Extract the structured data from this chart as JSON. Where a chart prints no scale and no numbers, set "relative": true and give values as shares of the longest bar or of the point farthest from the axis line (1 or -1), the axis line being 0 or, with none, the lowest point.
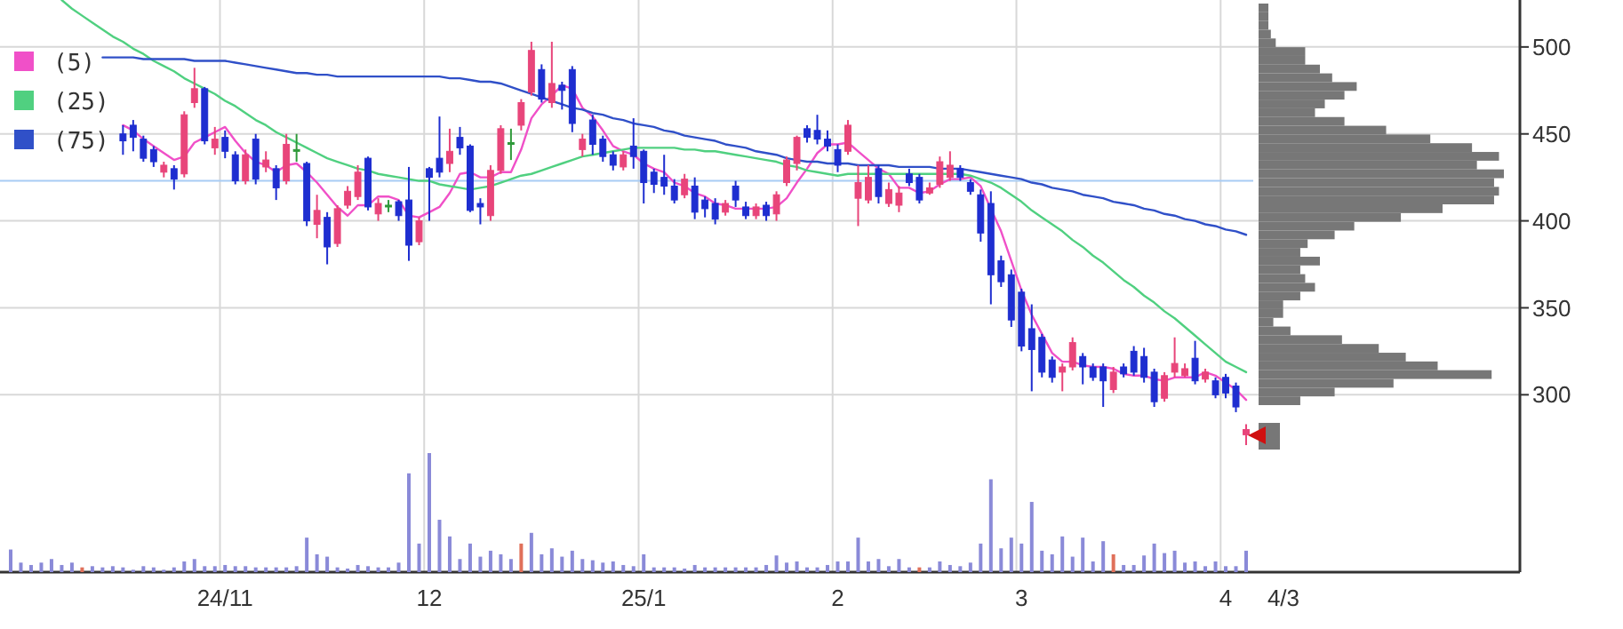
{
  "chart_data": [
    {
      "type": "candlestick",
      "annotations": [
        "4/3"
      ],
      "grid": true,
      "legend": "top left",
      "ylim": [
        198,
        527
      ],
      "yticks": [
        300,
        350,
        400,
        450,
        500
      ],
      "categories": [
        null,
        null,
        null,
        null,
        null,
        null,
        null,
        null,
        null,
        null,
        null,
        null,
        null,
        null,
        null,
        null,
        null,
        null,
        null,
        null,
        null,
        "24/11",
        null,
        null,
        null,
        null,
        null,
        null,
        null,
        null,
        null,
        null,
        null,
        null,
        null,
        null,
        null,
        null,
        null,
        null,
        null,
        "12",
        null,
        null,
        null,
        null,
        null,
        null,
        null,
        null,
        null,
        null,
        null,
        null,
        null,
        null,
        null,
        null,
        null,
        null,
        null,
        null,
        "25/1",
        null,
        null,
        null,
        null,
        null,
        null,
        null,
        null,
        null,
        null,
        null,
        null,
        null,
        null,
        null,
        null,
        null,
        null,
        "2",
        null,
        null,
        null,
        null,
        null,
        null,
        null,
        null,
        null,
        null,
        null,
        null,
        null,
        null,
        null,
        null,
        null,
        "3",
        null,
        null,
        null,
        null,
        null,
        null,
        null,
        null,
        null,
        null,
        null,
        null,
        null,
        null,
        null,
        null,
        null,
        null,
        null,
        "4",
        null,
        null
      ],
      "ohlc": [
        null,
        null,
        null,
        null,
        null,
        null,
        null,
        null,
        null,
        null,
        null,
        [
          450,
          455,
          438,
          446
        ],
        [
          455,
          458,
          440,
          448
        ],
        [
          447,
          449,
          434,
          436
        ],
        [
          441,
          443,
          431,
          434
        ],
        [
          428,
          434,
          425,
          432
        ],
        [
          430,
          432,
          418,
          424
        ],
        [
          427,
          463,
          425,
          461
        ],
        [
          468,
          488,
          465,
          476
        ],
        [
          476,
          477,
          444,
          446
        ],
        [
          442,
          454,
          438,
          447
        ],
        [
          448,
          452,
          436,
          440
        ],
        [
          438,
          440,
          421,
          423
        ],
        [
          423,
          441,
          421,
          438
        ],
        [
          447,
          450,
          421,
          424
        ],
        [
          431,
          440,
          428,
          435
        ],
        [
          430,
          432,
          412,
          419
        ],
        [
          423,
          450,
          421,
          444
        ],
        [
          441,
          450,
          434,
          441
        ],
        [
          433,
          434,
          397,
          400
        ],
        [
          398,
          415,
          390,
          406
        ],
        [
          402,
          405,
          375,
          385
        ],
        [
          387,
          409,
          385,
          407
        ],
        [
          409,
          420,
          407,
          417
        ],
        [
          414,
          432,
          412,
          428
        ],
        [
          436,
          437,
          406,
          408
        ],
        [
          404,
          413,
          400,
          410
        ],
        [
          409,
          412,
          405,
          409
        ],
        [
          411,
          412,
          400,
          403
        ],
        [
          412,
          431,
          377,
          386
        ],
        [
          388,
          402,
          386,
          400
        ],
        [
          430,
          431,
          400,
          425
        ],
        [
          436,
          460,
          425,
          428
        ],
        [
          433,
          453,
          428,
          440
        ],
        [
          448,
          454,
          438,
          442
        ],
        [
          443,
          444,
          405,
          406
        ],
        [
          410,
          413,
          398,
          408
        ],
        [
          403,
          432,
          400,
          429
        ],
        [
          429,
          455,
          427,
          453
        ],
        [
          445,
          453,
          435,
          445
        ],
        [
          455,
          470,
          452,
          468
        ],
        [
          474,
          503,
          472,
          498
        ],
        [
          487,
          490,
          468,
          470
        ],
        [
          468,
          503,
          465,
          479
        ],
        [
          478,
          480,
          464,
          475
        ],
        [
          487,
          489,
          451,
          456
        ],
        [
          441,
          450,
          437,
          447
        ],
        [
          458,
          461,
          438,
          444
        ],
        [
          447,
          449,
          434,
          437
        ],
        [
          438,
          440,
          429,
          432
        ],
        [
          431,
          440,
          429,
          438
        ],
        [
          443,
          459,
          430,
          437
        ],
        [
          440,
          441,
          410,
          422
        ],
        [
          428,
          430,
          416,
          421
        ],
        [
          425,
          438,
          415,
          420
        ],
        [
          420,
          424,
          410,
          412
        ],
        [
          415,
          427,
          413,
          424
        ],
        [
          420,
          425,
          401,
          405
        ],
        [
          412,
          414,
          402,
          407
        ],
        [
          410,
          413,
          398,
          401
        ],
        [
          405,
          412,
          403,
          410
        ],
        [
          420,
          423,
          408,
          412
        ],
        [
          408,
          411,
          401,
          403
        ],
        [
          403,
          410,
          401,
          408
        ],
        [
          409,
          411,
          400,
          403
        ],
        [
          404,
          417,
          400,
          415
        ],
        [
          422,
          437,
          420,
          435
        ],
        [
          433,
          449,
          429,
          448
        ],
        [
          453,
          455,
          445,
          448
        ],
        [
          452,
          461,
          444,
          447
        ],
        [
          447,
          452,
          440,
          443
        ],
        [
          441,
          444,
          428,
          432
        ],
        [
          440,
          458,
          438,
          455
        ],
        [
          413,
          432,
          397,
          422
        ],
        [
          412,
          432,
          410,
          425
        ],
        [
          430,
          432,
          410,
          414
        ],
        [
          410,
          422,
          408,
          418
        ],
        [
          409,
          420,
          405,
          416
        ],
        [
          427,
          430,
          420,
          422
        ],
        [
          425,
          427,
          410,
          412
        ],
        [
          416,
          422,
          415,
          419
        ],
        [
          421,
          437,
          419,
          434
        ],
        [
          425,
          440,
          423,
          432
        ],
        [
          430,
          432,
          423,
          425
        ],
        [
          422,
          424,
          415,
          417
        ],
        [
          415,
          418,
          388,
          393
        ],
        [
          410,
          417,
          352,
          369
        ],
        [
          377,
          380,
          362,
          365
        ],
        [
          369,
          372,
          339,
          343
        ],
        [
          359,
          361,
          325,
          328
        ],
        [
          338,
          352,
          302,
          326
        ],
        [
          333,
          335,
          310,
          313
        ],
        [
          320,
          322,
          307,
          310
        ],
        [
          313,
          318,
          302,
          316
        ],
        [
          316,
          333,
          314,
          330
        ],
        [
          322,
          324,
          306,
          316
        ],
        [
          316,
          318,
          308,
          310
        ],
        [
          316,
          318,
          293,
          308
        ],
        [
          303,
          316,
          301,
          313
        ],
        [
          316,
          318,
          310,
          312
        ],
        [
          325,
          328,
          311,
          313
        ],
        [
          322,
          327,
          307,
          310
        ],
        [
          313,
          315,
          293,
          296
        ],
        [
          298,
          313,
          296,
          311
        ],
        [
          313,
          333,
          310,
          318
        ],
        [
          311,
          318,
          310,
          315
        ],
        [
          321,
          331,
          306,
          308
        ],
        [
          309,
          315,
          307,
          313
        ],
        [
          308,
          310,
          298,
          300
        ],
        [
          310,
          312,
          298,
          301
        ],
        [
          305,
          307,
          290,
          293
        ],
        [
          277,
          283,
          271,
          280
        ]
      ],
      "colors": [
        null,
        null,
        null,
        null,
        null,
        null,
        null,
        null,
        null,
        null,
        null,
        "#1e2ed0",
        "#1e2ed0",
        "#1e2ed0",
        "#1e2ed0",
        "#e8457a",
        "#1e2ed0",
        "#e8457a",
        "#e8457a",
        "#1e2ed0",
        "#e8457a",
        "#1e2ed0",
        "#1e2ed0",
        "#e8457a",
        "#1e2ed0",
        "#e8457a",
        "#1e2ed0",
        "#e8457a",
        "#2f9a3a",
        "#1e2ed0",
        "#e8457a",
        "#1e2ed0",
        "#e8457a",
        "#e8457a",
        "#e8457a",
        "#1e2ed0",
        "#e8457a",
        "#2f9a3a",
        "#1e2ed0",
        "#1e2ed0",
        "#e8457a",
        "#1e2ed0",
        "#1e2ed0",
        "#e8457a",
        "#1e2ed0",
        "#1e2ed0",
        "#1e2ed0",
        "#e8457a",
        "#e8457a",
        "#2f9a3a",
        "#e8457a",
        "#e8457a",
        "#1e2ed0",
        "#e8457a",
        "#1e2ed0",
        "#1e2ed0",
        "#e8457a",
        "#1e2ed0",
        "#1e2ed0",
        "#1e2ed0",
        "#e8457a",
        "#1e2ed0",
        "#1e2ed0",
        "#1e2ed0",
        "#1e2ed0",
        "#1e2ed0",
        "#e8457a",
        "#1e2ed0",
        "#1e2ed0",
        "#1e2ed0",
        "#e8457a",
        "#1e2ed0",
        "#1e2ed0",
        "#e8457a",
        "#1e2ed0",
        "#e8457a",
        "#e8457a",
        "#e8457a",
        "#1e2ed0",
        "#1e2ed0",
        "#1e2ed0",
        "#1e2ed0",
        "#e8457a",
        "#e8457a",
        "#e8457a",
        "#1e2ed0",
        "#e8457a",
        "#e8457a",
        "#1e2ed0",
        "#1e2ed0",
        "#e8457a",
        "#e8457a",
        "#e8457a",
        "#1e2ed0",
        "#1e2ed0",
        "#1e2ed0",
        "#1e2ed0",
        "#1e2ed0",
        "#1e2ed0",
        "#1e2ed0",
        "#1e2ed0",
        "#1e2ed0",
        "#1e2ed0",
        "#e8457a",
        "#e8457a",
        "#1e2ed0",
        "#1e2ed0",
        "#1e2ed0",
        "#e8457a",
        "#1e2ed0",
        "#1e2ed0",
        "#1e2ed0",
        "#1e2ed0",
        "#e8457a",
        "#e8457a",
        "#e8457a",
        "#1e2ed0",
        "#e8457a",
        "#1e2ed0",
        "#1e2ed0",
        "#1e2ed0",
        "#e8457a"
      ],
      "series": [
        {
          "name": "(5)",
          "type": "line",
          "color": "#f050c8",
          "values": [
            null,
            null,
            null,
            null,
            null,
            null,
            null,
            null,
            null,
            null,
            null,
            455,
            452,
            447,
            443,
            439,
            435,
            437,
            445,
            448,
            451,
            454,
            446,
            439,
            434,
            432,
            428,
            432,
            433,
            428,
            422,
            415,
            408,
            403,
            409,
            409,
            414,
            414,
            412,
            403,
            402,
            405,
            408,
            416,
            427,
            428,
            425,
            425,
            428,
            428,
            441,
            459,
            467,
            472,
            478,
            476,
            465,
            460,
            452,
            443,
            440,
            438,
            433,
            430,
            428,
            422,
            420,
            416,
            414,
            410,
            409,
            407,
            407,
            407,
            407,
            408,
            413,
            422,
            430,
            439,
            444,
            444,
            445,
            440,
            435,
            430,
            427,
            419,
            419,
            416,
            417,
            421,
            424,
            424,
            425,
            420,
            407,
            394,
            377,
            360,
            346,
            335,
            324,
            319,
            319,
            317,
            316,
            316,
            315,
            312,
            311,
            311,
            309,
            308,
            310,
            310,
            310,
            313,
            311,
            307,
            303,
            297
          ]
        },
        {
          "name": "(25)",
          "type": "line",
          "color": "#50d080",
          "values": [
            null,
            null,
            null,
            null,
            null,
            527,
            522,
            518,
            514,
            510,
            506,
            503,
            499,
            496,
            492,
            489,
            486,
            482,
            479,
            476,
            473,
            469,
            466,
            462,
            458,
            455,
            451,
            448,
            445,
            442,
            439,
            436,
            434,
            432,
            430,
            429,
            427,
            426,
            425,
            424,
            423,
            423,
            421,
            420,
            419,
            418,
            419,
            420,
            422,
            424,
            426,
            427,
            429,
            431,
            433,
            435,
            437,
            438,
            439,
            440,
            441,
            442,
            442,
            442,
            442,
            442,
            441,
            441,
            440,
            440,
            439,
            438,
            437,
            436,
            435,
            434,
            432,
            431,
            429,
            428,
            427,
            426,
            427,
            427,
            427,
            427,
            427,
            427,
            427,
            427,
            427,
            427,
            427,
            427,
            426,
            424,
            422,
            419,
            415,
            411,
            406,
            402,
            398,
            394,
            389,
            385,
            380,
            376,
            371,
            366,
            362,
            357,
            353,
            348,
            344,
            339,
            334,
            329,
            324,
            319,
            316,
            313
          ]
        },
        {
          "name": "(75)",
          "type": "line",
          "color": "#3050c8",
          "values": [
            null,
            null,
            null,
            null,
            null,
            null,
            null,
            null,
            null,
            494,
            494,
            494,
            494,
            493,
            493,
            493,
            493,
            493,
            492,
            492,
            492,
            492,
            491,
            490,
            489,
            488,
            487,
            486,
            485,
            485,
            484,
            484,
            483,
            483,
            483,
            483,
            483,
            483,
            483,
            483,
            483,
            483,
            483,
            482,
            482,
            481,
            480,
            480,
            479,
            477,
            475,
            473,
            471,
            469,
            467,
            465,
            464,
            462,
            461,
            459,
            458,
            456,
            455,
            454,
            452,
            451,
            449,
            448,
            447,
            446,
            444,
            443,
            442,
            440,
            439,
            438,
            436,
            435,
            434,
            434,
            433,
            433,
            433,
            432,
            432,
            432,
            432,
            431,
            431,
            431,
            431,
            430,
            430,
            430,
            429,
            428,
            427,
            426,
            425,
            424,
            422,
            421,
            419,
            418,
            417,
            415,
            414,
            413,
            411,
            410,
            409,
            407,
            406,
            404,
            403,
            401,
            400,
            398,
            397,
            395,
            394,
            392
          ]
        }
      ],
      "ref_lines": [
        {
          "axis": "y",
          "value": 423,
          "color": "#a8ccf4"
        }
      ]
    },
    {
      "type": "bar",
      "relative": true,
      "categories": [
        null,
        null,
        null,
        null,
        null,
        null,
        null,
        null,
        null,
        null,
        null,
        null,
        null,
        null,
        null,
        null,
        null,
        null,
        null,
        null,
        null,
        null,
        null,
        null,
        null,
        null,
        null,
        null,
        null,
        null,
        null,
        null,
        null,
        null,
        null,
        null,
        null,
        null,
        null,
        null,
        null,
        null,
        null,
        null,
        null,
        null,
        null,
        null,
        null,
        null,
        null,
        null,
        null,
        null,
        null,
        null,
        null,
        null,
        null,
        null,
        null,
        null,
        null,
        null,
        null,
        null,
        null,
        null,
        null,
        null,
        null,
        null,
        null,
        null,
        null,
        null,
        null,
        null,
        null,
        null,
        null,
        null,
        null,
        null,
        null,
        null,
        null,
        null,
        null,
        null,
        null,
        null,
        null,
        null,
        null,
        null,
        null,
        null,
        null,
        null,
        null,
        null,
        null,
        null,
        null,
        null,
        null,
        null,
        null,
        null,
        null,
        null,
        null,
        null,
        null,
        null,
        null,
        null,
        null,
        null,
        null,
        null
      ],
      "values": [
        0.19,
        0.08,
        0.06,
        0.08,
        0.11,
        0.06,
        0.08,
        0.04,
        0.05,
        0.04,
        0.05,
        0.04,
        0.02,
        0.05,
        0.04,
        0.02,
        0.04,
        0.09,
        0.11,
        0.05,
        0.05,
        0.06,
        0.05,
        0.05,
        0.04,
        0.04,
        0.04,
        0.04,
        0.05,
        0.29,
        0.15,
        0.13,
        0.04,
        0.03,
        0.06,
        0.05,
        0.04,
        0.04,
        0.08,
        0.83,
        0.24,
        1,
        0.44,
        0.3,
        0.11,
        0.24,
        0.13,
        0.18,
        0.15,
        0.11,
        0.24,
        0.33,
        0.15,
        0.2,
        0.13,
        0.18,
        0.11,
        0.1,
        0.08,
        0.09,
        0.06,
        0.05,
        0.15,
        0.04,
        0.04,
        0.04,
        0.03,
        0.06,
        0.04,
        0.04,
        0.04,
        0.04,
        0.04,
        0.04,
        0.06,
        0.14,
        0.08,
        0.09,
        0.04,
        0.04,
        0.06,
        0.09,
        0.09,
        0.29,
        0.09,
        0.11,
        0.05,
        0.11,
        0.04,
        0.04,
        0.04,
        0.09,
        0.06,
        0.05,
        0.08,
        0.24,
        0.78,
        0.2,
        0.29,
        0.24,
        0.59,
        0.18,
        0.15,
        0.3,
        0.13,
        0.29,
        0.09,
        0.26,
        0.15,
        0.06,
        0.06,
        0.14,
        0.24,
        0.16,
        0.18,
        0.08,
        0.09,
        0.05,
        0.09,
        0.05,
        0.05,
        0.18
      ],
      "colors": [
        "#8a8ad8",
        "#8a8ad8",
        "#8a8ad8",
        "#8a8ad8",
        "#8a8ad8",
        "#8a8ad8",
        "#8a8ad8",
        "#e0705a",
        "#8a8ad8",
        "#8a8ad8",
        "#8a8ad8",
        "#8a8ad8",
        "#8a8ad8",
        "#8a8ad8",
        "#8a8ad8",
        "#8a8ad8",
        "#8a8ad8",
        "#8a8ad8",
        "#8a8ad8",
        "#8a8ad8",
        "#8a8ad8",
        "#8a8ad8",
        "#8a8ad8",
        "#8a8ad8",
        "#8a8ad8",
        "#8a8ad8",
        "#8a8ad8",
        "#8a8ad8",
        "#8a8ad8",
        "#8a8ad8",
        "#8a8ad8",
        "#8a8ad8",
        "#8a8ad8",
        "#8a8ad8",
        "#8a8ad8",
        "#8a8ad8",
        "#8a8ad8",
        "#8a8ad8",
        "#8a8ad8",
        "#8a8ad8",
        "#8a8ad8",
        "#8a8ad8",
        "#8a8ad8",
        "#8a8ad8",
        "#8a8ad8",
        "#8a8ad8",
        "#8a8ad8",
        "#8a8ad8",
        "#8a8ad8",
        "#8a8ad8",
        "#e0705a",
        "#8a8ad8",
        "#8a8ad8",
        "#8a8ad8",
        "#8a8ad8",
        "#8a8ad8",
        "#8a8ad8",
        "#8a8ad8",
        "#8a8ad8",
        "#8a8ad8",
        "#8a8ad8",
        "#8a8ad8",
        "#8a8ad8",
        "#8a8ad8",
        "#8a8ad8",
        "#8a8ad8",
        "#8a8ad8",
        "#8a8ad8",
        "#8a8ad8",
        "#8a8ad8",
        "#8a8ad8",
        "#8a8ad8",
        "#8a8ad8",
        "#8a8ad8",
        "#8a8ad8",
        "#8a8ad8",
        "#8a8ad8",
        "#8a8ad8",
        "#8a8ad8",
        "#8a8ad8",
        "#8a8ad8",
        "#8a8ad8",
        "#8a8ad8",
        "#8a8ad8",
        "#8a8ad8",
        "#8a8ad8",
        "#8a8ad8",
        "#8a8ad8",
        "#8a8ad8",
        "#e0705a",
        "#8a8ad8",
        "#8a8ad8",
        "#8a8ad8",
        "#8a8ad8",
        "#8a8ad8",
        "#8a8ad8",
        "#8a8ad8",
        "#8a8ad8",
        "#8a8ad8",
        "#8a8ad8",
        "#8a8ad8",
        "#8a8ad8",
        "#8a8ad8",
        "#8a8ad8",
        "#8a8ad8",
        "#8a8ad8",
        "#8a8ad8",
        "#8a8ad8",
        "#e0705a",
        "#8a8ad8",
        "#8a8ad8",
        "#8a8ad8",
        "#8a8ad8",
        "#8a8ad8",
        "#8a8ad8",
        "#8a8ad8",
        "#8a8ad8",
        "#8a8ad8",
        "#8a8ad8",
        "#8a8ad8",
        "#8a8ad8",
        "#8a8ad8"
      ]
    },
    {
      "type": "bar",
      "orientation": "horizontal",
      "relative": true,
      "color": "#777777",
      "categories": [
        null,
        null,
        null,
        null,
        null,
        null,
        null,
        null,
        null,
        null,
        null,
        null,
        null,
        null,
        null,
        null,
        null,
        null,
        null,
        null,
        null,
        null,
        null,
        null,
        null,
        null,
        null,
        null,
        null,
        null,
        null,
        null,
        null,
        null,
        null,
        null,
        null,
        null,
        null,
        null,
        null,
        null,
        null,
        null,
        null,
        null
      ],
      "values": [
        0.04,
        0.04,
        0.04,
        0.05,
        0.07,
        0.19,
        0.19,
        0.25,
        0.3,
        0.4,
        0.35,
        0.27,
        0.23,
        0.35,
        0.52,
        0.7,
        0.87,
        0.98,
        0.89,
        1,
        0.96,
        0.98,
        0.96,
        0.75,
        0.58,
        0.39,
        0.31,
        0.2,
        0.17,
        0.25,
        0.17,
        0.19,
        0.23,
        0.17,
        0.1,
        0.1,
        0.06,
        0.13,
        0.34,
        0.49,
        0.6,
        0.73,
        0.95,
        0.55,
        0.31,
        0.17
      ]
    }
  ]
}
